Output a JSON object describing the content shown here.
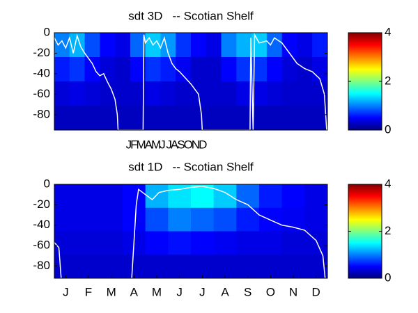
{
  "chart_data": [
    {
      "type": "heatmap",
      "title": "sdt 3D   -- Scotian Shelf",
      "x_text": "JFMAMJ JASOND",
      "xlim": [
        0,
        36
      ],
      "ylim": [
        -95,
        0
      ],
      "yticks": [
        0,
        -20,
        -40,
        -60,
        -80
      ],
      "colormap": "jet",
      "clim": [
        0,
        4
      ],
      "cticks": [
        0,
        2,
        4
      ],
      "z": [
        [
          1.0,
          1.2,
          0.8,
          0.5,
          0.4,
          0.9,
          1.3,
          1.1,
          0.7,
          0.5,
          0.4,
          1.0,
          1.2,
          1.3,
          0.9,
          0.5,
          0.4,
          0.6
        ],
        [
          0.6,
          0.7,
          0.5,
          0.35,
          0.3,
          0.5,
          0.7,
          0.6,
          0.45,
          0.3,
          0.3,
          0.5,
          0.7,
          0.7,
          0.5,
          0.35,
          0.3,
          0.4
        ],
        [
          0.35,
          0.4,
          0.35,
          0.3,
          0.3,
          0.3,
          0.4,
          0.35,
          0.3,
          0.3,
          0.3,
          0.3,
          0.4,
          0.4,
          0.35,
          0.3,
          0.3,
          0.3
        ],
        [
          0.25,
          0.25,
          0.25,
          0.25,
          0.25,
          0.25,
          0.25,
          0.25,
          0.25,
          0.25,
          0.25,
          0.25,
          0.25,
          0.25,
          0.25,
          0.25,
          0.25,
          0.25
        ]
      ],
      "line": {
        "color": "#ffffff",
        "x": [
          0,
          0.5,
          1,
          1.5,
          2,
          2.5,
          3,
          3.5,
          4,
          4.5,
          5,
          5.5,
          6,
          6.5,
          7,
          7.5,
          8,
          8.3,
          8.4,
          11.7,
          11.8,
          12,
          12.5,
          13,
          13.5,
          14,
          14.5,
          15,
          15.5,
          16,
          16.5,
          17,
          18,
          19,
          19.4,
          19.5,
          25.8,
          25.9,
          26.2,
          26.4,
          27,
          28,
          28.5,
          29,
          30,
          31,
          32,
          33,
          34,
          35,
          35.6,
          35.9
        ],
        "values": [
          -5,
          -12,
          -8,
          -15,
          -5,
          -20,
          -3,
          -14,
          -20,
          -25,
          -30,
          -38,
          -42,
          -40,
          -48,
          -55,
          -65,
          -80,
          -95,
          -95,
          -2,
          -10,
          -5,
          -12,
          -8,
          -15,
          -5,
          -20,
          -30,
          -35,
          -38,
          -42,
          -50,
          -60,
          -80,
          -95,
          -95,
          -5,
          -95,
          -2,
          -10,
          -8,
          -12,
          -5,
          -10,
          -20,
          -30,
          -35,
          -38,
          -45,
          -60,
          -95
        ]
      }
    },
    {
      "type": "heatmap",
      "title": "sdt 1D   -- Scotian Shelf",
      "categories": [
        "J",
        "F",
        "M",
        "A",
        "M",
        "J",
        "J",
        "A",
        "S",
        "O",
        "N",
        "D"
      ],
      "xlim": [
        0,
        12
      ],
      "ylim": [
        -92,
        0
      ],
      "yticks": [
        0,
        -20,
        -40,
        -60,
        -80
      ],
      "colormap": "jet",
      "clim": [
        0,
        4
      ],
      "cticks": [
        0,
        2,
        4
      ],
      "z": [
        [
          0.4,
          0.4,
          0.4,
          0.5,
          1.2,
          1.4,
          1.5,
          1.3,
          0.9,
          0.6,
          0.5,
          0.4
        ],
        [
          0.4,
          0.4,
          0.4,
          0.5,
          0.8,
          1.0,
          0.9,
          0.8,
          0.6,
          0.5,
          0.45,
          0.4
        ],
        [
          0.35,
          0.35,
          0.35,
          0.4,
          0.5,
          0.55,
          0.5,
          0.45,
          0.4,
          0.4,
          0.35,
          0.35
        ],
        [
          0.3,
          0.3,
          0.3,
          0.3,
          0.3,
          0.3,
          0.3,
          0.3,
          0.3,
          0.3,
          0.3,
          0.3
        ]
      ],
      "line": {
        "color": "#ffffff",
        "x": [
          0,
          0.2,
          0.3,
          3.3,
          3.4,
          3.6,
          3.7,
          4,
          4.3,
          4.6,
          5,
          5.5,
          6,
          6.5,
          7,
          7.5,
          8,
          8.5,
          9,
          9.5,
          10,
          10.5,
          11,
          11.5,
          11.8,
          11.9
        ],
        "values": [
          -57,
          -62,
          -92,
          null,
          -92,
          -20,
          -5,
          -10,
          -15,
          -8,
          -6,
          -5,
          -3,
          -2,
          -4,
          -8,
          -15,
          -20,
          -30,
          -35,
          -40,
          -42,
          -45,
          -55,
          -70,
          -92
        ]
      }
    }
  ]
}
